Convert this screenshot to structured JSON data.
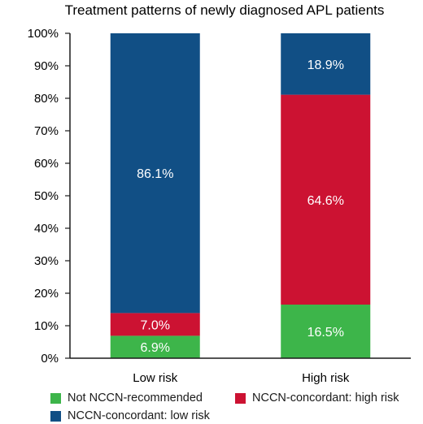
{
  "chart_data": {
    "type": "bar",
    "stacked": true,
    "title": "Treatment patterns of newly diagnosed APL patients",
    "xlabel": "",
    "ylabel": "",
    "ylim": [
      0,
      100
    ],
    "yticks": [
      "0%",
      "10%",
      "20%",
      "30%",
      "40%",
      "50%",
      "60%",
      "70%",
      "80%",
      "90%",
      "100%"
    ],
    "categories": [
      "Low risk",
      "High risk"
    ],
    "series": [
      {
        "name": "Not NCCN-recommended",
        "color": "#3db54a",
        "values": [
          6.9,
          16.5
        ],
        "labels": [
          "6.9%",
          "16.5%"
        ]
      },
      {
        "name": "NCCN-concordant: high risk",
        "color": "#cc1232",
        "values": [
          7.0,
          64.6
        ],
        "labels": [
          "7.0%",
          "64.6%"
        ]
      },
      {
        "name": "NCCN-concordant: low risk",
        "color": "#114f85",
        "values": [
          86.1,
          18.9
        ],
        "labels": [
          "86.1%",
          "18.9%"
        ]
      }
    ],
    "grid": false,
    "legend_position": "bottom"
  }
}
